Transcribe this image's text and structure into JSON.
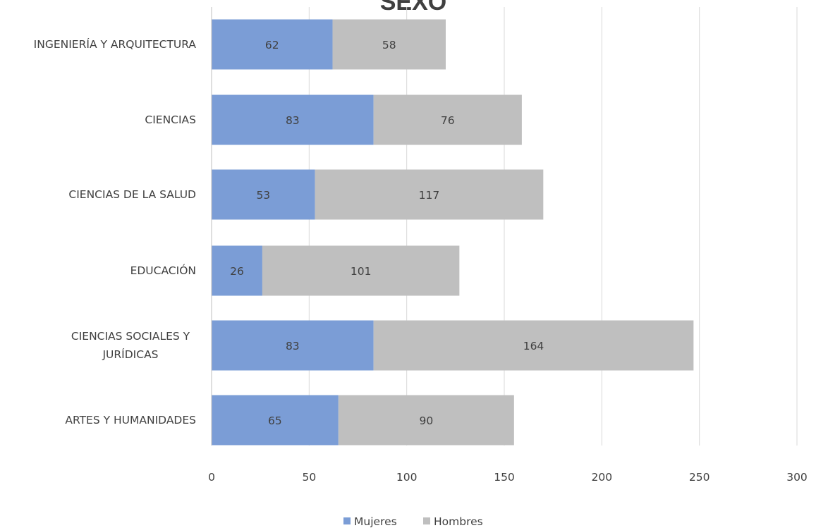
{
  "chart_data": {
    "type": "bar",
    "orientation": "horizontal",
    "stacked": true,
    "title": "SEXO",
    "categories": [
      "INGENIERÍA Y ARQUITECTURA",
      "CIENCIAS",
      "CIENCIAS DE LA SALUD",
      "EDUCACIÓN",
      "CIENCIAS SOCIALES Y JURÍDICAS",
      "ARTES Y HUMANIDADES"
    ],
    "category_lines": [
      [
        "INGENIERÍA Y ARQUITECTURA"
      ],
      [
        "CIENCIAS"
      ],
      [
        "CIENCIAS DE LA SALUD"
      ],
      [
        "EDUCACIÓN"
      ],
      [
        "CIENCIAS SOCIALES Y",
        "JURÍDICAS"
      ],
      [
        "ARTES Y HUMANIDADES"
      ]
    ],
    "series": [
      {
        "name": "Mujeres",
        "color": "#7b9dd6",
        "values": [
          62,
          83,
          53,
          26,
          83,
          65
        ]
      },
      {
        "name": "Hombres",
        "color": "#bfbfbf",
        "values": [
          58,
          76,
          117,
          101,
          164,
          90
        ]
      }
    ],
    "xlim": [
      0,
      300
    ],
    "x_ticks": [
      0,
      50,
      100,
      150,
      200,
      250,
      300
    ],
    "grid": true,
    "data_labels": true,
    "legend": "bottom",
    "xlabel": "",
    "ylabel": ""
  }
}
